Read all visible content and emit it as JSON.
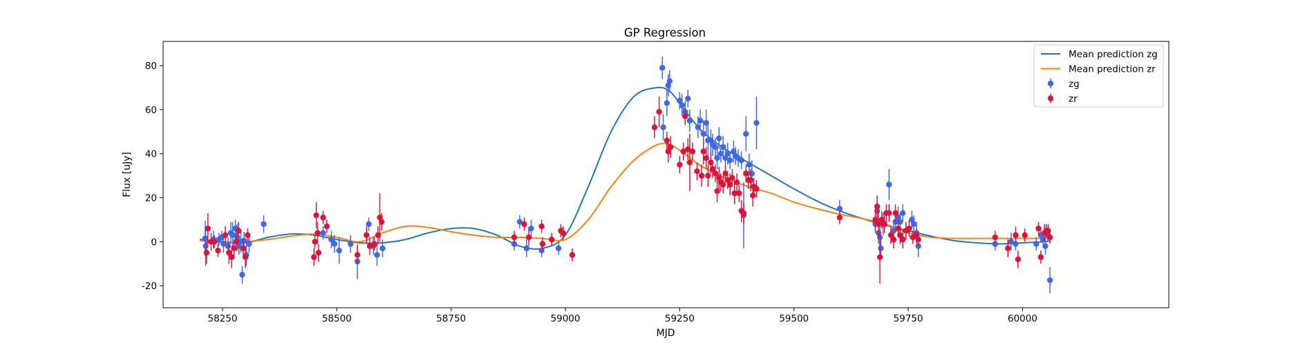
{
  "chart_data": {
    "type": "scatter",
    "title": "GP Regression",
    "xlabel": "MJD",
    "ylabel": "Flux [uJy]",
    "xlim": [
      58120,
      60320
    ],
    "ylim": [
      -30,
      91
    ],
    "xticks": [
      58250,
      58500,
      58750,
      59000,
      59250,
      59500,
      59750,
      60000
    ],
    "yticks": [
      -20,
      0,
      20,
      40,
      60,
      80
    ],
    "grid": false,
    "legend_position": "top-right",
    "lines": [
      {
        "name": "Mean prediction zg",
        "color": "#1f77b4",
        "x": [
          58200,
          58250,
          58300,
          58350,
          58400,
          58450,
          58500,
          58550,
          58600,
          58650,
          58700,
          58750,
          58800,
          58850,
          58900,
          58950,
          59000,
          59050,
          59100,
          59150,
          59200,
          59230,
          59260,
          59300,
          59350,
          59400,
          59450,
          59500,
          59550,
          59600,
          59650,
          59700,
          59750,
          59800,
          59850,
          59900,
          59950,
          60000,
          60050,
          60060
        ],
        "y": [
          1,
          0,
          -0.5,
          2,
          3.5,
          3,
          1,
          -0.5,
          -0.5,
          1,
          4,
          6,
          6,
          3,
          -2,
          -3,
          3,
          25,
          50,
          66,
          70,
          68,
          60,
          50,
          42,
          36,
          30,
          24,
          18.5,
          14,
          10.5,
          7.5,
          5,
          2.5,
          0.5,
          -0.5,
          -1,
          -0.5,
          0,
          0.5
        ]
      },
      {
        "name": "Mean prediction zr",
        "color": "#ff7f0e",
        "x": [
          58200,
          58250,
          58300,
          58350,
          58400,
          58450,
          58500,
          58550,
          58600,
          58650,
          58700,
          58750,
          58800,
          58850,
          58900,
          58950,
          59000,
          59050,
          59100,
          59150,
          59200,
          59230,
          59260,
          59300,
          59350,
          59400,
          59450,
          59500,
          59550,
          59600,
          59650,
          59700,
          59750,
          59800,
          59850,
          59900,
          59950,
          60000,
          60050,
          60060
        ],
        "y": [
          0.5,
          -0.5,
          0,
          1,
          2.5,
          3.5,
          2,
          0,
          4,
          7,
          6.5,
          4.5,
          3,
          2,
          2,
          1.5,
          1,
          10,
          25,
          37,
          44,
          44,
          40,
          34,
          29,
          25,
          22,
          18,
          15,
          12.5,
          10.5,
          8,
          4,
          2,
          1.5,
          1.5,
          1.5,
          1.5,
          1.5,
          1.5
        ]
      }
    ],
    "series": [
      {
        "name": "zg",
        "color": "#4169e1",
        "points": [
          [
            58212,
            1.5,
            8
          ],
          [
            58213,
            -2,
            9
          ],
          [
            58230,
            1,
            4
          ],
          [
            58242,
            1,
            3
          ],
          [
            58248,
            2,
            3
          ],
          [
            58252,
            -1,
            4
          ],
          [
            58262,
            -2,
            4
          ],
          [
            58268,
            4,
            5
          ],
          [
            58272,
            3,
            6
          ],
          [
            58278,
            6,
            4
          ],
          [
            58282,
            2,
            6
          ],
          [
            58286,
            -2,
            4
          ],
          [
            58290,
            0,
            5
          ],
          [
            58293,
            -15,
            4
          ],
          [
            58297,
            0.5,
            4
          ],
          [
            58302,
            -6,
            5
          ],
          [
            58308,
            -1,
            4
          ],
          [
            58340,
            8,
            4
          ],
          [
            58470,
            4,
            3
          ],
          [
            58488,
            1,
            4
          ],
          [
            58495,
            -1,
            4
          ],
          [
            58505,
            -4,
            6
          ],
          [
            58530,
            -1,
            4
          ],
          [
            58545,
            -9,
            8
          ],
          [
            58570,
            8,
            3
          ],
          [
            58580,
            -2,
            4
          ],
          [
            58588,
            -6,
            5
          ],
          [
            58600,
            -3,
            4
          ],
          [
            58888,
            -1,
            3
          ],
          [
            58900,
            9,
            3
          ],
          [
            58915,
            -3,
            4
          ],
          [
            58925,
            6,
            4
          ],
          [
            58948,
            -4,
            3
          ],
          [
            58985,
            -3,
            3
          ],
          [
            59212,
            79,
            5
          ],
          [
            59214,
            52,
            6
          ],
          [
            59222,
            63,
            6
          ],
          [
            59225,
            71,
            5
          ],
          [
            59228,
            73,
            5
          ],
          [
            59250,
            64,
            4
          ],
          [
            59255,
            62,
            5
          ],
          [
            59262,
            59,
            5
          ],
          [
            59268,
            65,
            4
          ],
          [
            59272,
            55,
            5
          ],
          [
            59290,
            52,
            5
          ],
          [
            59295,
            55,
            5
          ],
          [
            59302,
            49,
            6
          ],
          [
            59308,
            54,
            6
          ],
          [
            59312,
            46,
            7
          ],
          [
            59318,
            46,
            5
          ],
          [
            59322,
            44,
            5
          ],
          [
            59328,
            43,
            4
          ],
          [
            59332,
            38,
            5
          ],
          [
            59336,
            47,
            5
          ],
          [
            59340,
            40,
            4
          ],
          [
            59345,
            43,
            5
          ],
          [
            59350,
            38,
            6
          ],
          [
            59355,
            40,
            5
          ],
          [
            59360,
            37,
            4
          ],
          [
            59368,
            41,
            5
          ],
          [
            59372,
            39,
            4
          ],
          [
            59378,
            38,
            4
          ],
          [
            59385,
            37,
            4
          ],
          [
            59390,
            12,
            15
          ],
          [
            59395,
            49,
            8
          ],
          [
            59402,
            35,
            5
          ],
          [
            59408,
            31,
            6
          ],
          [
            59418,
            54,
            12
          ],
          [
            59600,
            15,
            4
          ],
          [
            59678,
            8,
            4
          ],
          [
            59682,
            14,
            4
          ],
          [
            59685,
            4,
            5
          ],
          [
            59688,
            2,
            5
          ],
          [
            59690,
            -3,
            5
          ],
          [
            59695,
            8,
            5
          ],
          [
            59708,
            26,
            7
          ],
          [
            59718,
            5,
            5
          ],
          [
            59722,
            9,
            4
          ],
          [
            59728,
            11,
            5
          ],
          [
            59732,
            9,
            4
          ],
          [
            59738,
            13,
            4
          ],
          [
            59758,
            10,
            4
          ],
          [
            59762,
            8,
            4
          ],
          [
            59768,
            4,
            5
          ],
          [
            59772,
            -2,
            5
          ],
          [
            59940,
            -1,
            3
          ],
          [
            59975,
            0,
            4
          ],
          [
            59985,
            -1,
            3
          ],
          [
            60030,
            -1,
            3
          ],
          [
            60040,
            3,
            3
          ],
          [
            60045,
            1,
            3
          ],
          [
            60050,
            -2,
            4
          ],
          [
            60055,
            3,
            3
          ],
          [
            60060,
            -17.5,
            6
          ]
        ]
      },
      {
        "name": "zr",
        "color": "#dc143c",
        "points": [
          [
            58215,
            -5,
            5
          ],
          [
            58218,
            6,
            7
          ],
          [
            58225,
            0,
            4
          ],
          [
            58232,
            0,
            3
          ],
          [
            58240,
            -4,
            3
          ],
          [
            58256,
            3,
            4
          ],
          [
            58264,
            -5,
            5
          ],
          [
            58270,
            -7,
            5
          ],
          [
            58275,
            -3,
            4
          ],
          [
            58280,
            0,
            4
          ],
          [
            58285,
            5,
            4
          ],
          [
            58295,
            -3,
            4
          ],
          [
            58300,
            -7,
            5
          ],
          [
            58305,
            3,
            3
          ],
          [
            58450,
            -7,
            4
          ],
          [
            58452,
            0,
            3
          ],
          [
            58455,
            12,
            6
          ],
          [
            58458,
            4,
            5
          ],
          [
            58460,
            -5,
            4
          ],
          [
            58470,
            11,
            3
          ],
          [
            58478,
            7,
            3
          ],
          [
            58545,
            -6,
            4
          ],
          [
            58565,
            3,
            4
          ],
          [
            58572,
            -2,
            4
          ],
          [
            58582,
            -1,
            3
          ],
          [
            58590,
            3,
            4
          ],
          [
            58594,
            11,
            11
          ],
          [
            58598,
            9,
            4
          ],
          [
            58888,
            2,
            3
          ],
          [
            58910,
            8,
            3
          ],
          [
            58920,
            2,
            4
          ],
          [
            58948,
            7,
            3
          ],
          [
            58950,
            -1,
            3
          ],
          [
            58970,
            1,
            3
          ],
          [
            58990,
            5,
            3
          ],
          [
            58995,
            4,
            3
          ],
          [
            59015,
            -6,
            3
          ],
          [
            59195,
            52,
            5
          ],
          [
            59205,
            59,
            7
          ],
          [
            59222,
            46,
            4
          ],
          [
            59225,
            41,
            5
          ],
          [
            59230,
            43,
            5
          ],
          [
            59250,
            35,
            4
          ],
          [
            59258,
            41,
            4
          ],
          [
            59262,
            57,
            4
          ],
          [
            59268,
            42,
            5
          ],
          [
            59272,
            36,
            13
          ],
          [
            59278,
            41,
            4
          ],
          [
            59288,
            32,
            4
          ],
          [
            59298,
            30,
            5
          ],
          [
            59302,
            41,
            6
          ],
          [
            59308,
            38,
            5
          ],
          [
            59312,
            30,
            5
          ],
          [
            59318,
            36,
            5
          ],
          [
            59322,
            33,
            4
          ],
          [
            59328,
            31,
            4
          ],
          [
            59332,
            23,
            5
          ],
          [
            59336,
            29,
            5
          ],
          [
            59340,
            27,
            4
          ],
          [
            59345,
            26,
            4
          ],
          [
            59350,
            31,
            4
          ],
          [
            59355,
            28,
            4
          ],
          [
            59360,
            26,
            5
          ],
          [
            59365,
            29,
            4
          ],
          [
            59370,
            22,
            5
          ],
          [
            59375,
            27,
            4
          ],
          [
            59380,
            22,
            4
          ],
          [
            59385,
            14,
            5
          ],
          [
            59390,
            13,
            5
          ],
          [
            59395,
            31,
            4
          ],
          [
            59400,
            28,
            4
          ],
          [
            59405,
            28,
            5
          ],
          [
            59410,
            21,
            5
          ],
          [
            59412,
            25,
            4
          ],
          [
            59418,
            24,
            4
          ],
          [
            59600,
            11,
            3
          ],
          [
            59678,
            10,
            5
          ],
          [
            59682,
            16,
            5
          ],
          [
            59685,
            8,
            6
          ],
          [
            59688,
            -7,
            12
          ],
          [
            59692,
            10,
            4
          ],
          [
            59698,
            8,
            4
          ],
          [
            59702,
            13,
            4
          ],
          [
            59708,
            13,
            4
          ],
          [
            59712,
            3,
            4
          ],
          [
            59718,
            1,
            4
          ],
          [
            59722,
            13,
            4
          ],
          [
            59728,
            6,
            4
          ],
          [
            59732,
            3,
            4
          ],
          [
            59738,
            1,
            4
          ],
          [
            59745,
            5,
            4
          ],
          [
            59752,
            6,
            4
          ],
          [
            59760,
            2,
            3
          ],
          [
            59768,
            3,
            3
          ],
          [
            59772,
            1,
            3
          ],
          [
            59940,
            2,
            3
          ],
          [
            59968,
            -3,
            4
          ],
          [
            59985,
            3,
            4
          ],
          [
            59990,
            -8,
            4
          ],
          [
            60005,
            3,
            3
          ],
          [
            60035,
            6,
            3
          ],
          [
            60040,
            -7,
            3
          ],
          [
            60048,
            4,
            4
          ],
          [
            60052,
            5,
            3
          ],
          [
            60056,
            5,
            3
          ],
          [
            60060,
            2,
            3
          ]
        ]
      }
    ]
  }
}
